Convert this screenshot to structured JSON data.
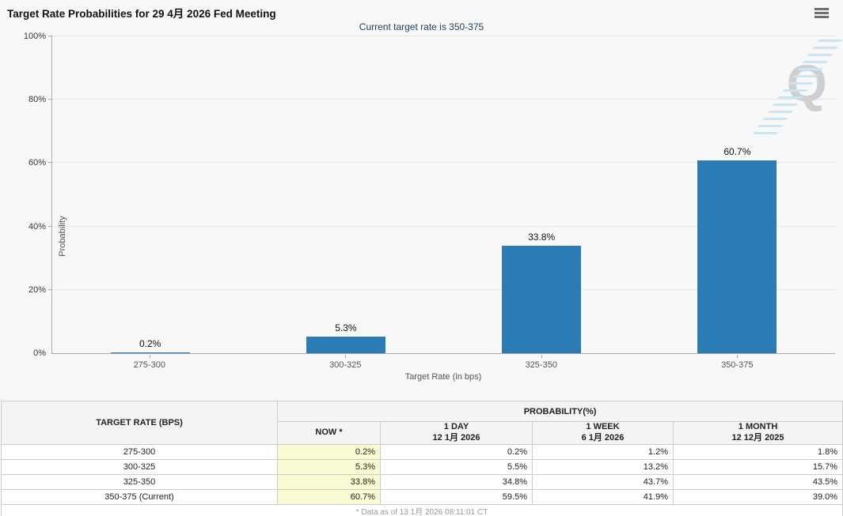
{
  "header": {
    "title": "Target Rate Probabilities for 29 4月 2026 Fed Meeting",
    "subtitle": "Current target rate is 350-375"
  },
  "chart_data": {
    "type": "bar",
    "title": "Target Rate Probabilities for 29 4月 2026 Fed Meeting",
    "subtitle": "Current target rate is 350-375",
    "categories": [
      "275-300",
      "300-325",
      "325-350",
      "350-375"
    ],
    "values": [
      0.2,
      5.3,
      33.8,
      60.7
    ],
    "bar_labels": [
      "0.2%",
      "5.3%",
      "33.8%",
      "60.7%"
    ],
    "xlabel": "Target Rate (in bps)",
    "ylabel": "Probability",
    "ylim": [
      0,
      100
    ],
    "yticks": [
      "0%",
      "20%",
      "40%",
      "60%",
      "80%",
      "100%"
    ],
    "grid": "horizontal dotted",
    "legend": "none",
    "bar_color": "#2b7cb5"
  },
  "table": {
    "col1_header": "TARGET RATE (BPS)",
    "group_header": "PROBABILITY(%)",
    "sub_headers": {
      "now": "NOW *",
      "day1_line1": "1 DAY",
      "day1_line2": "12 1月 2026",
      "week1_line1": "1 WEEK",
      "week1_line2": "6 1月 2026",
      "month1_line1": "1 MONTH",
      "month1_line2": "12 12月 2025"
    },
    "rows": [
      {
        "rate": "275-300",
        "now": "0.2%",
        "day": "0.2%",
        "week": "1.2%",
        "month": "1.8%"
      },
      {
        "rate": "300-325",
        "now": "5.3%",
        "day": "5.5%",
        "week": "13.2%",
        "month": "15.7%"
      },
      {
        "rate": "325-350",
        "now": "33.8%",
        "day": "34.8%",
        "week": "43.7%",
        "month": "43.5%"
      },
      {
        "rate": "350-375 (Current)",
        "now": "60.7%",
        "day": "59.5%",
        "week": "41.9%",
        "month": "39.0%"
      }
    ]
  },
  "footnote": "* Data as of 13 1月 2026 08:11:01 CT",
  "icons": {
    "menu": "hamburger-icon",
    "watermark": "quikstrike-q-logo"
  },
  "colors": {
    "bar": "#2b7cb5",
    "now_column_bg": "#fafad2",
    "subtitle": "#1e4164",
    "panel_bg": "#f8f8f8"
  }
}
